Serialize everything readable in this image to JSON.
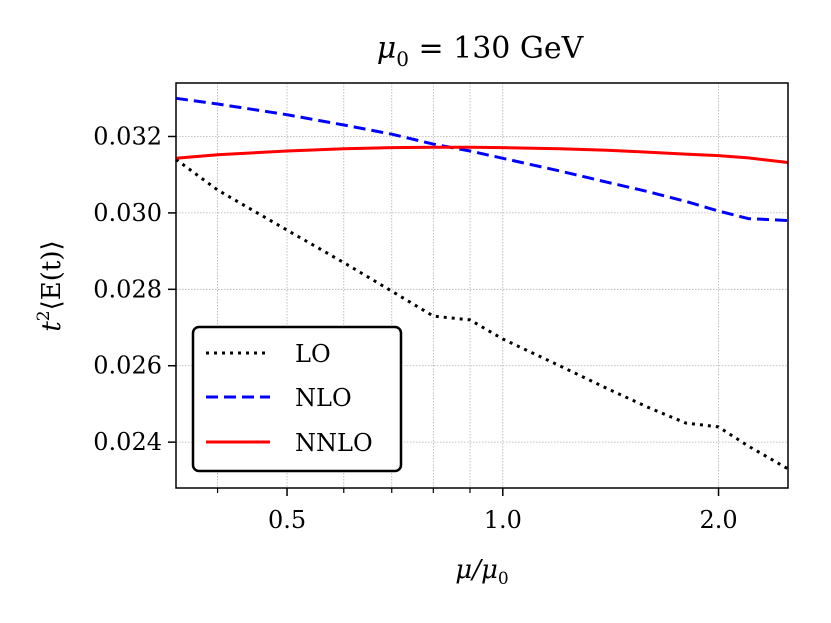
{
  "chart_data": {
    "type": "line",
    "title": "μ₀ = 130 GeV",
    "title_parts": {
      "mu": "μ",
      "sub": "0",
      "rest": " = 130 GeV"
    },
    "xlabel": "μ/μ₀",
    "xlabel_parts": {
      "mu": "μ/μ",
      "sub": "0"
    },
    "ylabel": "t²⟨E(t)⟩",
    "ylabel_parts": {
      "t": "t",
      "sup": "2",
      "rest": "⟨E(t)⟩"
    },
    "xscale": "log",
    "xlim": [
      0.35,
      2.5
    ],
    "ylim": [
      0.0228,
      0.0334
    ],
    "xticks": [
      {
        "value": 0.5,
        "label": "0.5"
      },
      {
        "value": 1.0,
        "label": "1.0"
      },
      {
        "value": 2.0,
        "label": "2.0"
      }
    ],
    "xminor_ticks": [
      0.4,
      0.6,
      0.7,
      0.8,
      0.9
    ],
    "yticks": [
      {
        "value": 0.024,
        "label": "0.024"
      },
      {
        "value": 0.026,
        "label": "0.026"
      },
      {
        "value": 0.028,
        "label": "0.028"
      },
      {
        "value": 0.03,
        "label": "0.030"
      },
      {
        "value": 0.032,
        "label": "0.032"
      }
    ],
    "grid": true,
    "legend_position": "lower-left",
    "series": [
      {
        "name": "LO",
        "color": "#000000",
        "style": "dotted",
        "x": [
          0.35,
          0.4,
          0.5,
          0.6,
          0.7,
          0.8,
          0.9,
          1.0,
          1.2,
          1.4,
          1.6,
          1.8,
          2.0,
          2.2,
          2.5
        ],
        "y": [
          0.0314,
          0.0306,
          0.02955,
          0.0287,
          0.02795,
          0.0273,
          0.0272,
          0.0267,
          0.026,
          0.0254,
          0.0249,
          0.0245,
          0.0244,
          0.0239,
          0.0233
        ]
      },
      {
        "name": "NLO",
        "color": "#0000ff",
        "style": "dashed",
        "x": [
          0.35,
          0.4,
          0.5,
          0.6,
          0.7,
          0.8,
          0.9,
          1.0,
          1.2,
          1.4,
          1.6,
          1.8,
          2.0,
          2.2,
          2.5
        ],
        "y": [
          0.033,
          0.03285,
          0.03257,
          0.0323,
          0.03206,
          0.0318,
          0.03162,
          0.03143,
          0.0311,
          0.0308,
          0.03055,
          0.0303,
          0.03005,
          0.02985,
          0.0298
        ]
      },
      {
        "name": "NNLO",
        "color": "#ff0000",
        "style": "solid",
        "x": [
          0.35,
          0.4,
          0.5,
          0.6,
          0.7,
          0.8,
          0.9,
          1.0,
          1.2,
          1.4,
          1.6,
          1.8,
          2.0,
          2.2,
          2.5
        ],
        "y": [
          0.03143,
          0.03152,
          0.03162,
          0.03168,
          0.03171,
          0.03172,
          0.03172,
          0.03171,
          0.03168,
          0.03164,
          0.03159,
          0.03154,
          0.0315,
          0.03144,
          0.03132
        ]
      }
    ]
  }
}
